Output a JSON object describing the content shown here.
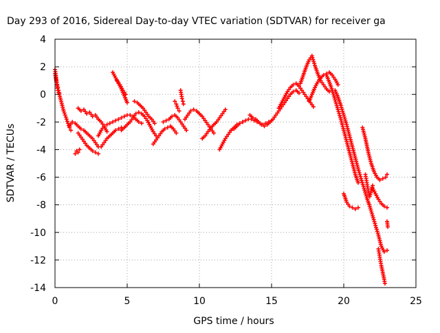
{
  "chart_data": {
    "type": "scatter",
    "title": "Day 293 of 2016, Sidereal Day-to-day VTEC variation (SDTVAR) for receiver ga",
    "xlabel": "GPS time / hours",
    "ylabel": "SDTVAR / TECUs",
    "xlim": [
      0,
      25
    ],
    "ylim": [
      -14,
      4
    ],
    "xticks": [
      0,
      5,
      10,
      15,
      20,
      25
    ],
    "yticks": [
      4,
      2,
      0,
      -2,
      -4,
      -6,
      -8,
      -10,
      -12,
      -14
    ],
    "grid": true,
    "legend": "none",
    "marker": "+",
    "color": "#ff0000",
    "tracks": [
      {
        "x": [
          0.0,
          0.05,
          0.1,
          0.15,
          0.2,
          0.3,
          0.4,
          0.5,
          0.6,
          0.7,
          0.8,
          0.9,
          1.0,
          1.1
        ],
        "y": [
          1.8,
          1.5,
          1.0,
          0.6,
          0.3,
          0.0,
          -0.4,
          -0.8,
          -1.2,
          -1.5,
          -1.8,
          -2.1,
          -2.4,
          -2.6
        ]
      },
      {
        "x": [
          0.0,
          0.05,
          0.1,
          0.15,
          0.2,
          0.25,
          0.3
        ],
        "y": [
          1.5,
          1.2,
          0.9,
          0.7,
          0.5,
          0.3,
          0.1
        ]
      },
      {
        "x": [
          1.0,
          1.2,
          1.4,
          1.6,
          1.8,
          2.0,
          2.2,
          2.4,
          2.6,
          2.8,
          3.0
        ],
        "y": [
          -2.3,
          -2.0,
          -2.1,
          -2.3,
          -2.5,
          -2.6,
          -2.8,
          -3.0,
          -3.2,
          -3.5,
          -3.8
        ]
      },
      {
        "x": [
          1.4,
          1.5,
          1.6,
          1.7
        ],
        "y": [
          -4.3,
          -4.1,
          -4.2,
          -4.0
        ]
      },
      {
        "x": [
          1.6,
          1.8,
          2.0,
          2.2,
          2.4,
          2.6,
          2.8,
          3.0,
          3.2,
          3.4,
          3.6
        ],
        "y": [
          -1.0,
          -1.2,
          -1.1,
          -1.4,
          -1.3,
          -1.6,
          -1.5,
          -1.8,
          -2.0,
          -2.3,
          -2.7
        ]
      },
      {
        "x": [
          1.6,
          1.8,
          2.0,
          2.2,
          2.4,
          2.6,
          2.8,
          3.0
        ],
        "y": [
          -2.8,
          -3.1,
          -3.4,
          -3.7,
          -3.9,
          -4.1,
          -4.2,
          -4.3
        ]
      },
      {
        "x": [
          3.0,
          3.2,
          3.4,
          3.6,
          3.8,
          4.0,
          4.2,
          4.4,
          4.6,
          4.8,
          5.0,
          5.2,
          5.4,
          5.6,
          5.8,
          6.0
        ],
        "y": [
          -3.0,
          -2.6,
          -2.3,
          -2.2,
          -2.1,
          -2.0,
          -1.9,
          -1.8,
          -1.7,
          -1.6,
          -1.5,
          -1.5,
          -1.6,
          -1.8,
          -2.0,
          -2.1
        ]
      },
      {
        "x": [
          3.2,
          3.4,
          3.6,
          3.8,
          4.0,
          4.2,
          4.4,
          4.6
        ],
        "y": [
          -3.8,
          -3.5,
          -3.2,
          -3.0,
          -2.8,
          -2.6,
          -2.5,
          -2.4
        ]
      },
      {
        "x": [
          4.0,
          4.2,
          4.4,
          4.6,
          4.8,
          5.0
        ],
        "y": [
          1.6,
          1.2,
          0.8,
          0.4,
          -0.1,
          -0.6
        ]
      },
      {
        "x": [
          4.3,
          4.5,
          4.7,
          4.9
        ],
        "y": [
          1.0,
          0.7,
          0.3,
          0.0
        ]
      },
      {
        "x": [
          4.6,
          4.8,
          5.0,
          5.2,
          5.4,
          5.6,
          5.8,
          6.0,
          6.2,
          6.4,
          6.6,
          6.8,
          7.0
        ],
        "y": [
          -2.6,
          -2.4,
          -2.2,
          -2.0,
          -1.7,
          -1.4,
          -1.3,
          -1.4,
          -1.6,
          -1.9,
          -2.3,
          -2.7,
          -3.0
        ]
      },
      {
        "x": [
          5.5,
          5.7,
          5.9,
          6.1,
          6.3,
          6.5,
          6.7,
          6.9
        ],
        "y": [
          -0.5,
          -0.6,
          -0.8,
          -1.0,
          -1.3,
          -1.6,
          -1.8,
          -2.1
        ]
      },
      {
        "x": [
          6.8,
          7.0,
          7.2,
          7.4,
          7.6,
          7.8,
          8.0,
          8.2,
          8.4
        ],
        "y": [
          -3.6,
          -3.3,
          -3.0,
          -2.7,
          -2.5,
          -2.4,
          -2.3,
          -2.5,
          -2.8
        ]
      },
      {
        "x": [
          7.5,
          7.7,
          7.9,
          8.1,
          8.3,
          8.5,
          8.7,
          8.9,
          9.1
        ],
        "y": [
          -2.0,
          -1.9,
          -1.8,
          -1.6,
          -1.5,
          -1.7,
          -2.0,
          -2.3,
          -2.6
        ]
      },
      {
        "x": [
          8.3,
          8.4,
          8.5,
          8.6
        ],
        "y": [
          -0.5,
          -0.7,
          -1.0,
          -1.2
        ]
      },
      {
        "x": [
          8.7,
          8.75,
          8.8,
          8.85,
          8.9
        ],
        "y": [
          0.3,
          0.0,
          -0.3,
          -0.5,
          -0.7
        ]
      },
      {
        "x": [
          9.0,
          9.2,
          9.4,
          9.6,
          9.8,
          10.0,
          10.2,
          10.4,
          10.6,
          10.8,
          11.0
        ],
        "y": [
          -1.8,
          -1.5,
          -1.2,
          -1.1,
          -1.2,
          -1.4,
          -1.6,
          -1.9,
          -2.2,
          -2.5,
          -2.8
        ]
      },
      {
        "x": [
          10.2,
          10.4,
          10.6,
          10.8,
          11.0,
          11.2,
          11.4,
          11.6,
          11.8
        ],
        "y": [
          -3.2,
          -3.0,
          -2.7,
          -2.4,
          -2.2,
          -2.0,
          -1.7,
          -1.4,
          -1.1
        ]
      },
      {
        "x": [
          11.4,
          11.6,
          11.8,
          12.0,
          12.2,
          12.4,
          12.6,
          12.8,
          13.0
        ],
        "y": [
          -4.0,
          -3.6,
          -3.2,
          -2.9,
          -2.6,
          -2.4,
          -2.2,
          -2.1,
          -2.0
        ]
      },
      {
        "x": [
          12.2,
          12.4,
          12.6,
          12.8,
          13.0,
          13.2,
          13.4,
          13.6,
          13.8,
          14.0,
          14.2,
          14.4,
          14.6,
          14.8,
          15.0
        ],
        "y": [
          -2.6,
          -2.5,
          -2.3,
          -2.1,
          -2.0,
          -1.9,
          -1.8,
          -1.8,
          -1.9,
          -2.0,
          -2.1,
          -2.2,
          -2.1,
          -2.0,
          -1.9
        ]
      },
      {
        "x": [
          13.5,
          13.7,
          13.9,
          14.1,
          14.3,
          14.5,
          14.7,
          14.9,
          15.1,
          15.3,
          15.5,
          15.7,
          15.9,
          16.1,
          16.3,
          16.5,
          16.7,
          16.9
        ],
        "y": [
          -1.5,
          -1.7,
          -1.8,
          -2.0,
          -2.2,
          -2.3,
          -2.2,
          -2.0,
          -1.8,
          -1.5,
          -1.2,
          -0.9,
          -0.6,
          -0.3,
          0.0,
          0.2,
          0.3,
          0.1
        ]
      },
      {
        "x": [
          15.5,
          15.7,
          15.9,
          16.1,
          16.3,
          16.5,
          16.7,
          16.9,
          17.1,
          17.3,
          17.5,
          17.7,
          17.9
        ],
        "y": [
          -1.0,
          -0.6,
          -0.2,
          0.2,
          0.5,
          0.7,
          0.8,
          0.6,
          0.3,
          0.0,
          -0.3,
          -0.6,
          -0.9
        ]
      },
      {
        "x": [
          17.0,
          17.2,
          17.4,
          17.6,
          17.8,
          18.0,
          18.2,
          18.4,
          18.6,
          18.8,
          19.0
        ],
        "y": [
          0.8,
          1.4,
          2.0,
          2.5,
          2.8,
          2.1,
          1.5,
          1.0,
          0.7,
          0.4,
          0.2
        ]
      },
      {
        "x": [
          17.6,
          17.8,
          18.0,
          18.2,
          18.4,
          18.6,
          18.8,
          19.0,
          19.2,
          19.4,
          19.6
        ],
        "y": [
          -0.5,
          0.0,
          0.5,
          0.9,
          1.2,
          1.4,
          1.5,
          1.6,
          1.4,
          1.1,
          0.7
        ]
      },
      {
        "x": [
          18.8,
          19.0,
          19.2,
          19.4,
          19.6,
          19.8,
          20.0,
          20.2,
          20.4,
          20.6,
          20.8,
          21.0
        ],
        "y": [
          1.4,
          0.9,
          0.3,
          -0.4,
          -1.1,
          -1.8,
          -2.6,
          -3.4,
          -4.2,
          -5.0,
          -5.8,
          -6.4
        ]
      },
      {
        "x": [
          19.4,
          19.6,
          19.8,
          20.0,
          20.2,
          20.4,
          20.6,
          20.8,
          21.0,
          21.2,
          21.4,
          21.6,
          21.8,
          22.0,
          22.2,
          22.4,
          22.6,
          22.8,
          23.0
        ],
        "y": [
          0.3,
          -0.2,
          -0.8,
          -1.5,
          -2.2,
          -3.0,
          -3.8,
          -4.6,
          -5.4,
          -6.1,
          -6.8,
          -7.5,
          -8.1,
          -8.8,
          -9.5,
          -10.2,
          -11.0,
          -11.4,
          -11.3
        ]
      },
      {
        "x": [
          20.0,
          20.2,
          20.4,
          20.6,
          20.8,
          21.0
        ],
        "y": [
          -7.2,
          -7.8,
          -8.1,
          -8.2,
          -8.3,
          -8.2
        ]
      },
      {
        "x": [
          21.3,
          21.5,
          21.7,
          21.9,
          22.1,
          22.3,
          22.5,
          22.7,
          22.9,
          23.0
        ],
        "y": [
          -2.4,
          -3.2,
          -4.2,
          -5.0,
          -5.6,
          -6.0,
          -6.2,
          -6.1,
          -6.0,
          -5.8
        ]
      },
      {
        "x": [
          21.5,
          21.6,
          21.7,
          21.8,
          21.9,
          22.0
        ],
        "y": [
          -5.8,
          -6.4,
          -7.0,
          -7.4,
          -7.0,
          -6.6
        ]
      },
      {
        "x": [
          22.0,
          22.2,
          22.4,
          22.6,
          22.8,
          23.0
        ],
        "y": [
          -6.8,
          -7.2,
          -7.6,
          -7.9,
          -8.1,
          -8.2
        ]
      },
      {
        "x": [
          22.4,
          22.5,
          22.6,
          22.7,
          22.8,
          22.85
        ],
        "y": [
          -11.2,
          -11.8,
          -12.4,
          -12.9,
          -13.4,
          -13.7
        ]
      },
      {
        "x": [
          23.0,
          23.05
        ],
        "y": [
          -9.2,
          -9.6
        ]
      }
    ]
  }
}
